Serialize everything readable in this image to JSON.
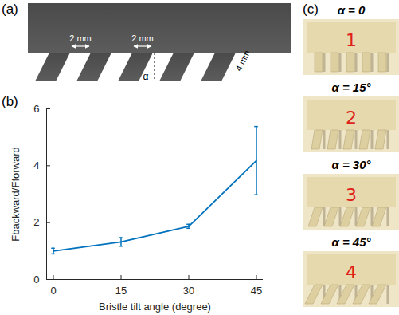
{
  "panels": [
    "(a)",
    "(b)",
    "(c)"
  ],
  "diagram": {
    "gap_label": "2 mm",
    "width_label": "2 mm",
    "length_label": "4 mm",
    "angle_label": "α"
  },
  "photos": [
    {
      "title": "α = 0",
      "number": "1"
    },
    {
      "title": "α = 15°",
      "number": "2"
    },
    {
      "title": "α = 30°",
      "number": "3"
    },
    {
      "title": "α = 45°",
      "number": "4"
    }
  ],
  "chart_data": {
    "type": "line",
    "x_label": "Bristle tilt angle (degree)",
    "y_label": "Fbackward/Fforward",
    "x": [
      0,
      15,
      30,
      45
    ],
    "values": [
      1.0,
      1.32,
      1.87,
      4.18
    ],
    "errors": [
      0.1,
      0.15,
      0.07,
      1.2
    ],
    "color": "#0072bd",
    "xlim": [
      -1.5,
      46.5
    ],
    "xticks": [
      0,
      15,
      30,
      45
    ],
    "ylim": [
      0,
      6
    ],
    "yticks": [
      0,
      2,
      4,
      6
    ],
    "grid": false
  }
}
